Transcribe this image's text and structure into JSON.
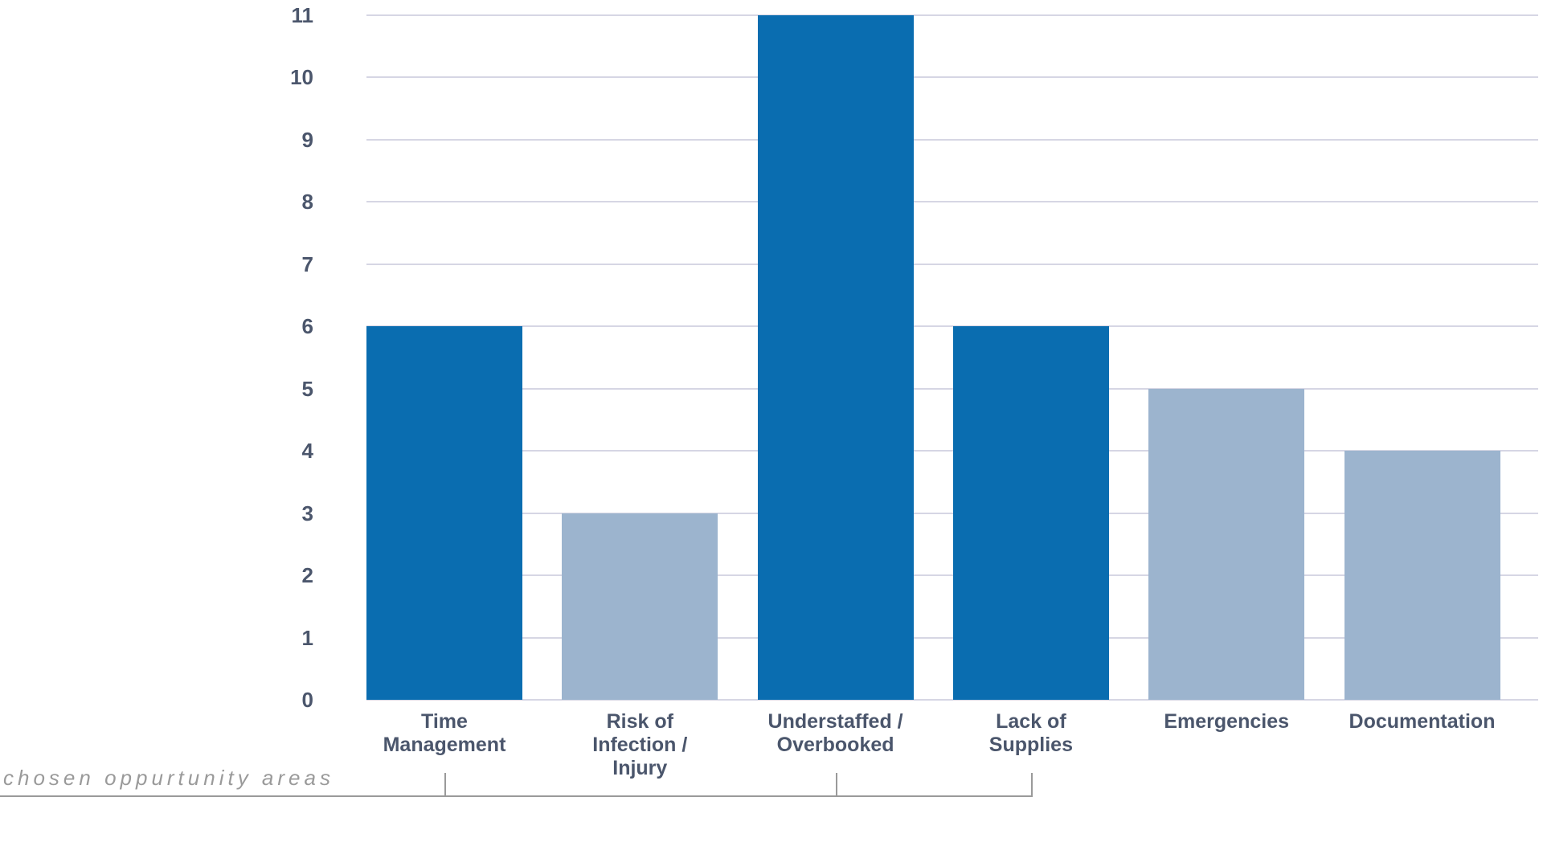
{
  "chart_data": {
    "type": "bar",
    "title": "",
    "xlabel": "",
    "ylabel": "",
    "categories": [
      "Time Management",
      "Risk of Infection / Injury",
      "Understaffed / Overbooked",
      "Lack of Supplies",
      "Emergencies",
      "Documentation"
    ],
    "category_label_lines": [
      [
        "Time",
        "Management"
      ],
      [
        "Risk of",
        "Infection /",
        "Injury"
      ],
      [
        "Understaffed /",
        "Overbooked"
      ],
      [
        "Lack of",
        "Supplies"
      ],
      [
        "Emergencies"
      ],
      [
        "Documentation"
      ]
    ],
    "values": [
      6,
      3,
      11,
      6,
      5,
      4
    ],
    "emphasized": [
      true,
      false,
      true,
      true,
      false,
      false
    ],
    "y_ticks": [
      0,
      1,
      2,
      3,
      4,
      5,
      6,
      7,
      8,
      9,
      10,
      11
    ],
    "ylim": [
      0,
      11
    ],
    "grid": "horizontal",
    "legend_position": "none",
    "colors": {
      "bar_emphasized": "#0a6db0",
      "bar_muted": "#9cb4ce",
      "axis_text": "#4b566c",
      "gridline": "#d6d6e4",
      "annotation_gray": "#9a9a9a"
    },
    "annotation": {
      "label": "chosen oppurtunity areas",
      "marked_category_indices": [
        0,
        2,
        3
      ]
    }
  }
}
